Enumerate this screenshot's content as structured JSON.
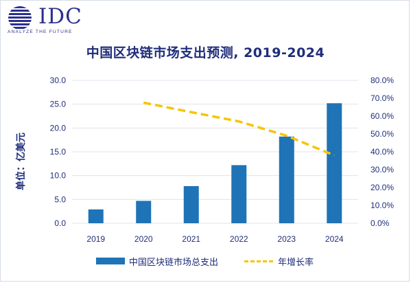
{
  "logo": {
    "word": "IDC",
    "tagline": "ANALYZE THE FUTURE"
  },
  "chart_data": {
    "type": "bar",
    "title": "中国区块链市场支出预测, 2019-2024",
    "ylabel": "单位：亿美元",
    "y2label": "",
    "categories": [
      "2019",
      "2020",
      "2021",
      "2022",
      "2023",
      "2024"
    ],
    "ylim": [
      0,
      30
    ],
    "y2lim": [
      0,
      0.8
    ],
    "yticks": [
      "0.0",
      "5.0",
      "10.0",
      "15.0",
      "20.0",
      "25.0",
      "30.0"
    ],
    "y2ticks": [
      "0.0%",
      "10.0%",
      "20.0%",
      "30.0%",
      "40.0%",
      "50.0%",
      "60.0%",
      "70.0%",
      "80.0%"
    ],
    "grid": true,
    "legend_position": "bottom",
    "series": [
      {
        "name": "中国区块链市场总支出",
        "type": "bar",
        "axis": "left",
        "color": "#1f73b7",
        "values": [
          2.9,
          4.7,
          7.8,
          12.2,
          18.2,
          25.2
        ]
      },
      {
        "name": "年增长率",
        "type": "line",
        "style": "dashed",
        "axis": "right",
        "color": "#f6c500",
        "values": [
          null,
          0.675,
          0.622,
          0.57,
          0.49,
          0.38
        ]
      }
    ]
  }
}
